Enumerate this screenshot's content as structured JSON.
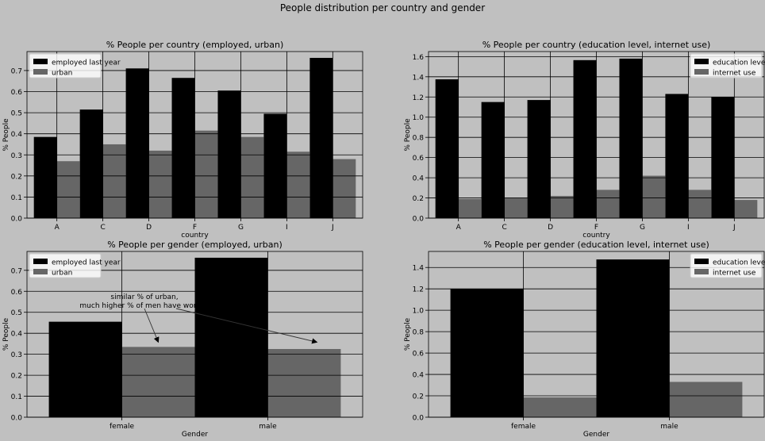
{
  "figure": {
    "suptitle": "People distribution per country and gender"
  },
  "chart_data": [
    {
      "type": "bar",
      "title": "% People per country (employed, urban)",
      "xlabel": "country",
      "ylabel": "% People",
      "categories": [
        "A",
        "C",
        "D",
        "F",
        "G",
        "I",
        "J"
      ],
      "series": [
        {
          "name": "employed last year",
          "values": [
            0.385,
            0.515,
            0.71,
            0.665,
            0.605,
            0.495,
            0.76
          ]
        },
        {
          "name": "urban",
          "values": [
            0.27,
            0.35,
            0.32,
            0.415,
            0.385,
            0.315,
            0.28
          ]
        }
      ],
      "ylim": [
        0,
        0.79
      ],
      "yticks": [
        0.0,
        0.1,
        0.2,
        0.3,
        0.4,
        0.5,
        0.6,
        0.7
      ],
      "ytick_labels": [
        "0.0",
        "0.1",
        "0.2",
        "0.3",
        "0.4",
        "0.5",
        "0.6",
        "0.7"
      ],
      "grid": true,
      "legend": "top-left",
      "colors": [
        "#000000",
        "#666666"
      ]
    },
    {
      "type": "bar",
      "title": "% People per country (education level, internet use)",
      "xlabel": "country",
      "ylabel": "% People",
      "categories": [
        "A",
        "C",
        "D",
        "F",
        "G",
        "I",
        "J"
      ],
      "series": [
        {
          "name": "education level",
          "values": [
            1.375,
            1.15,
            1.17,
            1.565,
            1.58,
            1.23,
            1.2
          ]
        },
        {
          "name": "internet use",
          "values": [
            0.19,
            0.2,
            0.22,
            0.28,
            0.42,
            0.28,
            0.18
          ]
        }
      ],
      "ylim": [
        0,
        1.65
      ],
      "yticks": [
        0.0,
        0.2,
        0.4,
        0.6,
        0.8,
        1.0,
        1.2,
        1.4,
        1.6
      ],
      "ytick_labels": [
        "0.0",
        "0.2",
        "0.4",
        "0.6",
        "0.8",
        "1.0",
        "1.2",
        "1.4",
        "1.6"
      ],
      "grid": true,
      "legend": "top-right",
      "colors": [
        "#000000",
        "#666666"
      ]
    },
    {
      "type": "bar",
      "title": "% People per gender (employed, urban)",
      "xlabel": "Gender",
      "ylabel": "% People",
      "categories": [
        "female",
        "male"
      ],
      "series": [
        {
          "name": "employed last year",
          "values": [
            0.455,
            0.76
          ]
        },
        {
          "name": "urban",
          "values": [
            0.335,
            0.325
          ]
        }
      ],
      "ylim": [
        0,
        0.79
      ],
      "yticks": [
        0.0,
        0.1,
        0.2,
        0.3,
        0.4,
        0.5,
        0.6,
        0.7
      ],
      "ytick_labels": [
        "0.0",
        "0.1",
        "0.2",
        "0.3",
        "0.4",
        "0.5",
        "0.6",
        "0.7"
      ],
      "grid": true,
      "legend": "top-left",
      "colors": [
        "#000000",
        "#666666"
      ],
      "annotation": {
        "lines": [
          "similar % of urban,",
          "much higher % of men have worked"
        ],
        "arrow_targets": [
          {
            "category": "female",
            "series": 1,
            "value": 0.35
          },
          {
            "category": "male",
            "series": 1,
            "value": 0.35
          }
        ]
      }
    },
    {
      "type": "bar",
      "title": "% People per gender (education level, internet use)",
      "xlabel": "Gender",
      "ylabel": "% People",
      "categories": [
        "female",
        "male"
      ],
      "series": [
        {
          "name": "education level",
          "values": [
            1.2,
            1.475
          ]
        },
        {
          "name": "internet use",
          "values": [
            0.185,
            0.33
          ]
        }
      ],
      "ylim": [
        0,
        1.55
      ],
      "yticks": [
        0.0,
        0.2,
        0.4,
        0.6,
        0.8,
        1.0,
        1.2,
        1.4
      ],
      "ytick_labels": [
        "0.0",
        "0.2",
        "0.4",
        "0.6",
        "0.8",
        "1.0",
        "1.2",
        "1.4"
      ],
      "grid": true,
      "legend": "top-right",
      "colors": [
        "#000000",
        "#666666"
      ]
    }
  ]
}
